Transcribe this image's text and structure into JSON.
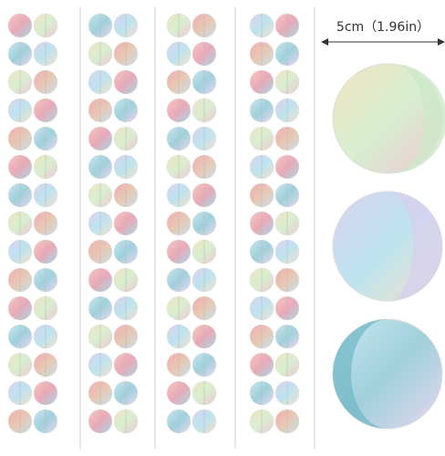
{
  "size_label": "5cm（1.96in）"
}
